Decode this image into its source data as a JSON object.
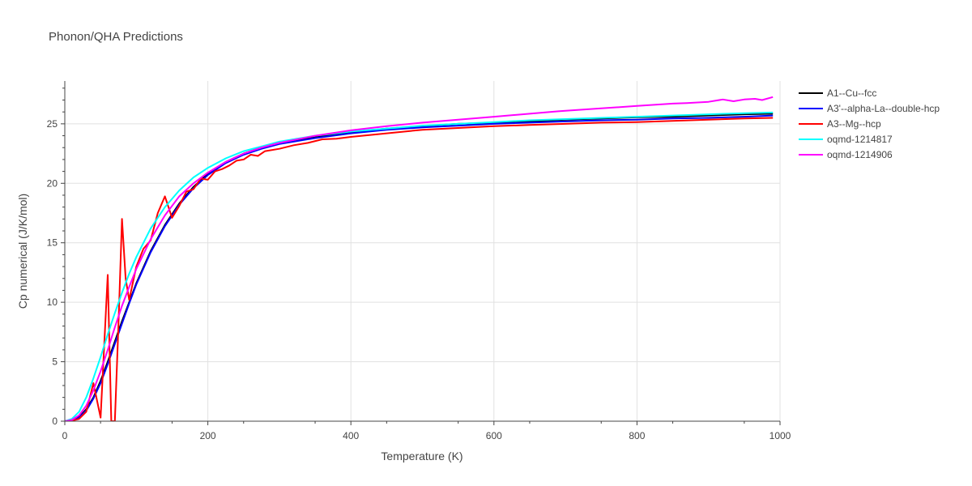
{
  "chart_data": {
    "type": "line",
    "title": "Phonon/QHA Predictions",
    "xlabel": "Temperature (K)",
    "ylabel": "Cp numerical (J/K/mol)",
    "xlim": [
      0,
      1000
    ],
    "ylim": [
      0,
      28.6
    ],
    "xticks": [
      0,
      200,
      400,
      600,
      800,
      1000
    ],
    "yticks": [
      0,
      5,
      10,
      15,
      20,
      25
    ],
    "grid": true,
    "legend_position": "right",
    "series": [
      {
        "name": "A1--Cu--fcc",
        "color": "#000000",
        "x": [
          0,
          10,
          20,
          30,
          40,
          50,
          60,
          70,
          80,
          90,
          100,
          120,
          140,
          160,
          180,
          200,
          225,
          250,
          275,
          300,
          350,
          400,
          450,
          500,
          550,
          600,
          650,
          700,
          750,
          800,
          850,
          900,
          950,
          990
        ],
        "y": [
          0,
          0.05,
          0.35,
          1.0,
          2.0,
          3.4,
          5.0,
          6.7,
          8.4,
          10.0,
          11.6,
          14.3,
          16.5,
          18.3,
          19.7,
          20.8,
          21.8,
          22.5,
          23.0,
          23.4,
          23.9,
          24.3,
          24.6,
          24.8,
          25.0,
          25.1,
          25.2,
          25.35,
          25.45,
          25.55,
          25.6,
          25.7,
          25.8,
          25.85
        ]
      },
      {
        "name": "A3'--alpha-La--double-hcp",
        "color": "#0000ff",
        "x": [
          0,
          10,
          20,
          30,
          40,
          50,
          60,
          70,
          80,
          90,
          100,
          120,
          140,
          160,
          180,
          200,
          225,
          250,
          275,
          300,
          350,
          400,
          450,
          500,
          550,
          600,
          650,
          700,
          750,
          800,
          850,
          900,
          950,
          990
        ],
        "y": [
          0,
          0.05,
          0.3,
          0.9,
          1.9,
          3.2,
          4.8,
          6.5,
          8.2,
          9.9,
          11.5,
          14.2,
          16.4,
          18.2,
          19.6,
          20.7,
          21.7,
          22.4,
          22.9,
          23.3,
          23.8,
          24.2,
          24.5,
          24.7,
          24.85,
          25.0,
          25.1,
          25.2,
          25.3,
          25.35,
          25.45,
          25.5,
          25.6,
          25.7
        ]
      },
      {
        "name": "A3--Mg--hcp",
        "color": "#ff0000",
        "x": [
          0,
          10,
          20,
          30,
          40,
          50,
          60,
          65,
          70,
          75,
          80,
          85,
          90,
          100,
          110,
          120,
          130,
          140,
          150,
          160,
          170,
          180,
          190,
          200,
          210,
          220,
          230,
          240,
          250,
          260,
          270,
          280,
          300,
          320,
          340,
          360,
          380,
          400,
          450,
          500,
          550,
          600,
          650,
          700,
          750,
          800,
          850,
          900,
          950,
          990
        ],
        "y": [
          0,
          0.05,
          0.2,
          0.8,
          3.2,
          0.3,
          12.3,
          0,
          0,
          8.0,
          17.0,
          12.0,
          10.2,
          13.0,
          14.5,
          15.2,
          17.5,
          18.9,
          17.1,
          18.1,
          19.3,
          19.5,
          20.4,
          20.3,
          21.0,
          21.2,
          21.5,
          21.9,
          22.0,
          22.4,
          22.3,
          22.7,
          22.9,
          23.2,
          23.4,
          23.7,
          23.75,
          23.9,
          24.2,
          24.5,
          24.65,
          24.8,
          24.9,
          25.0,
          25.1,
          25.15,
          25.25,
          25.35,
          25.45,
          25.5
        ]
      },
      {
        "name": "oqmd-1214817",
        "color": "#00ffff",
        "x": [
          0,
          10,
          20,
          30,
          40,
          50,
          60,
          70,
          80,
          90,
          100,
          120,
          140,
          160,
          180,
          200,
          225,
          250,
          275,
          300,
          350,
          400,
          450,
          500,
          550,
          600,
          650,
          700,
          750,
          800,
          850,
          900,
          950,
          990
        ],
        "y": [
          0,
          0.2,
          0.8,
          2.0,
          3.6,
          5.4,
          7.3,
          9.1,
          10.8,
          12.4,
          13.8,
          16.2,
          18.0,
          19.4,
          20.5,
          21.3,
          22.1,
          22.7,
          23.1,
          23.5,
          24.0,
          24.35,
          24.6,
          24.85,
          25.0,
          25.15,
          25.3,
          25.4,
          25.5,
          25.6,
          25.7,
          25.8,
          25.9,
          25.95
        ]
      },
      {
        "name": "oqmd-1214906",
        "color": "#ff00ff",
        "x": [
          0,
          10,
          20,
          30,
          40,
          50,
          60,
          70,
          80,
          90,
          100,
          120,
          140,
          160,
          180,
          200,
          225,
          250,
          275,
          300,
          350,
          400,
          450,
          500,
          550,
          600,
          650,
          690,
          700,
          750,
          800,
          850,
          870,
          900,
          920,
          935,
          950,
          965,
          975,
          990
        ],
        "y": [
          0,
          0.1,
          0.5,
          1.3,
          2.6,
          4.2,
          6.0,
          7.9,
          9.7,
          11.3,
          12.8,
          15.3,
          17.3,
          18.9,
          20.0,
          20.9,
          21.8,
          22.5,
          23.0,
          23.4,
          24.0,
          24.45,
          24.8,
          25.1,
          25.35,
          25.6,
          25.85,
          26.05,
          26.1,
          26.3,
          26.5,
          26.7,
          26.75,
          26.85,
          27.05,
          26.9,
          27.05,
          27.1,
          27.0,
          27.25
        ]
      }
    ]
  }
}
